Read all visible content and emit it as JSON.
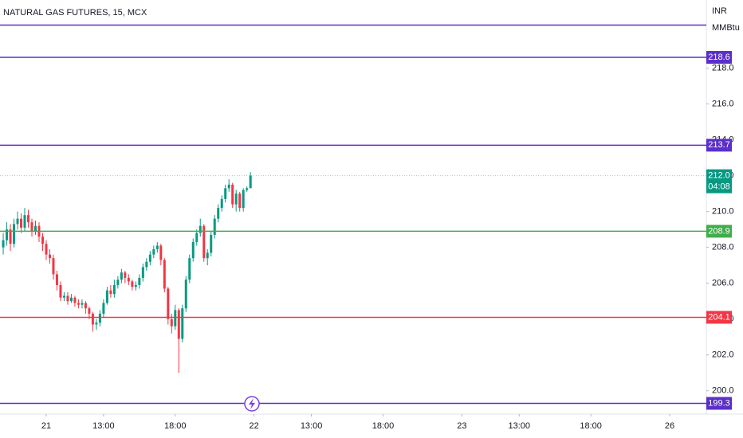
{
  "chart_data": {
    "type": "candlestick",
    "title": "NATURAL GAS FUTURES, 15, MCX",
    "currency": "INR",
    "unit": "MMBtu",
    "countdown": "04:08",
    "up_color": "#089981",
    "down_color": "#f23645",
    "xlim": [
      -12.9,
      184
    ],
    "ylim": [
      198.7,
      221.8
    ],
    "xticks": [
      {
        "value": 0,
        "label": "21"
      },
      {
        "value": 16,
        "label": "13:00"
      },
      {
        "value": 36,
        "label": "18:00"
      },
      {
        "value": 58,
        "label": "22"
      },
      {
        "value": 74,
        "label": "13:00"
      },
      {
        "value": 94,
        "label": "18:00"
      },
      {
        "value": 116,
        "label": "23"
      },
      {
        "value": 132,
        "label": "13:00"
      },
      {
        "value": 152,
        "label": "18:00"
      },
      {
        "value": 174,
        "label": "26"
      }
    ],
    "yticks": [
      {
        "value": 200,
        "label": "200.0"
      },
      {
        "value": 202,
        "label": "202.0"
      },
      {
        "value": 204,
        "label": "204.0"
      },
      {
        "value": 206,
        "label": "206.0"
      },
      {
        "value": 208,
        "label": "208.0"
      },
      {
        "value": 210,
        "label": "210.0"
      },
      {
        "value": 212,
        "label": "212.0"
      },
      {
        "value": 214,
        "label": "214.0"
      },
      {
        "value": 216,
        "label": "216.0"
      },
      {
        "value": 218,
        "label": "218.0"
      }
    ],
    "levels": [
      {
        "value": 220.4,
        "color": "#5b2fc9"
      },
      {
        "value": 218.6,
        "color": "#5b2fc9"
      },
      {
        "value": 213.7,
        "color": "#5b2fc9"
      },
      {
        "value": 208.9,
        "color": "#3fae49"
      },
      {
        "value": 204.1,
        "color": "#f23645"
      },
      {
        "value": 199.3,
        "color": "#5b2fc9"
      }
    ],
    "last_price": {
      "value": 212,
      "label": "212.0"
    },
    "x": [
      -12,
      -11,
      -10,
      -9,
      -8,
      -7,
      -6,
      -5,
      -4,
      -3,
      -2,
      -1,
      0,
      1,
      2,
      3,
      4,
      5,
      6,
      7,
      8,
      9,
      10,
      11,
      12,
      13,
      14,
      15,
      16,
      17,
      18,
      19,
      20,
      21,
      22,
      23,
      24,
      25,
      26,
      27,
      28,
      29,
      30,
      31,
      32,
      33,
      34,
      35,
      36,
      37,
      38,
      39,
      40,
      41,
      42,
      43,
      44,
      45,
      46,
      47,
      48,
      49,
      50,
      51,
      52,
      53,
      54,
      55,
      56,
      57
    ],
    "open": [
      208.0,
      208.4,
      209.0,
      208.2,
      209.3,
      209.6,
      209.1,
      209.8,
      209.4,
      208.9,
      209.2,
      208.6,
      208.2,
      207.6,
      207.4,
      206.5,
      205.9,
      205.2,
      205.3,
      205.0,
      205.2,
      204.9,
      204.8,
      204.9,
      204.6,
      204.3,
      203.7,
      203.8,
      204.3,
      204.9,
      205.6,
      205.4,
      205.9,
      206.2,
      206.6,
      206.3,
      206.1,
      205.8,
      205.9,
      206.3,
      206.9,
      207.2,
      207.6,
      207.9,
      208.1,
      207.3,
      205.7,
      204.0,
      203.6,
      204.5,
      202.9,
      204.6,
      206.2,
      207.4,
      208.3,
      208.8,
      209.2,
      207.4,
      207.7,
      208.7,
      209.6,
      210.2,
      210.7,
      211.3,
      211.5,
      210.4,
      211.0,
      210.2,
      211.2,
      211.3
    ],
    "high": [
      208.8,
      209.4,
      209.3,
      209.6,
      210.0,
      209.9,
      210.2,
      210.1,
      209.6,
      209.5,
      209.4,
      208.8,
      208.4,
      207.9,
      207.6,
      206.7,
      206.1,
      205.5,
      205.5,
      205.4,
      205.3,
      205.1,
      205.1,
      205.0,
      204.7,
      204.4,
      204.0,
      204.5,
      205.1,
      205.8,
      205.9,
      206.2,
      206.4,
      206.8,
      206.7,
      206.5,
      206.2,
      206.1,
      206.5,
      207.1,
      207.4,
      207.8,
      208.1,
      208.3,
      208.2,
      207.4,
      205.8,
      204.3,
      204.8,
      204.6,
      204.8,
      206.4,
      207.6,
      208.5,
      209.0,
      209.6,
      209.3,
      207.9,
      208.9,
      209.8,
      210.4,
      210.9,
      211.5,
      211.8,
      211.6,
      211.2,
      211.1,
      211.3,
      211.4,
      212.2
    ],
    "low": [
      207.6,
      208.1,
      207.8,
      208.0,
      209.0,
      208.8,
      208.9,
      209.1,
      208.6,
      208.7,
      208.3,
      207.8,
      207.3,
      207.1,
      206.2,
      205.6,
      205.0,
      205.0,
      204.8,
      204.9,
      204.7,
      204.6,
      204.6,
      204.3,
      204.0,
      203.3,
      203.4,
      203.6,
      204.1,
      204.8,
      205.2,
      205.2,
      205.7,
      206.0,
      206.0,
      205.9,
      205.6,
      205.6,
      205.7,
      206.1,
      206.7,
      207.0,
      207.4,
      207.7,
      207.0,
      205.5,
      203.7,
      203.2,
      203.4,
      201.0,
      202.7,
      204.4,
      206.0,
      207.2,
      208.1,
      208.6,
      207.2,
      207.0,
      207.5,
      208.5,
      209.4,
      210.0,
      210.5,
      211.1,
      210.2,
      210.0,
      210.0,
      210.0,
      211.1,
      211.3
    ],
    "close": [
      208.4,
      209.0,
      208.2,
      209.3,
      209.6,
      209.1,
      209.8,
      209.4,
      208.9,
      209.2,
      208.6,
      208.2,
      207.6,
      207.4,
      206.5,
      205.9,
      205.2,
      205.3,
      205.0,
      205.2,
      204.9,
      204.8,
      204.9,
      204.6,
      204.3,
      203.7,
      203.8,
      204.3,
      204.9,
      205.6,
      205.4,
      205.9,
      206.2,
      206.6,
      206.3,
      206.1,
      205.8,
      205.9,
      206.3,
      206.9,
      207.2,
      207.6,
      207.9,
      208.1,
      207.3,
      205.7,
      204.0,
      203.6,
      204.5,
      202.9,
      204.6,
      206.2,
      207.4,
      208.3,
      208.8,
      209.2,
      207.4,
      207.7,
      208.7,
      209.6,
      210.2,
      210.7,
      211.3,
      211.5,
      210.4,
      211.0,
      210.2,
      211.2,
      211.3,
      212.0
    ]
  }
}
